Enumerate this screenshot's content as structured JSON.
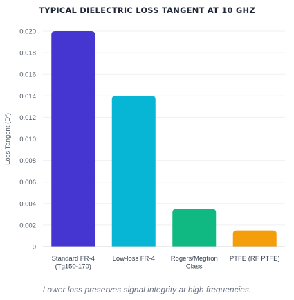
{
  "chart_data": {
    "type": "bar",
    "title": "TYPICAL DIELECTRIC LOSS TANGENT AT 10 GHZ",
    "ylabel": "Loss Tangent (Df)",
    "xlabel": "",
    "ylim": [
      0,
      0.02
    ],
    "yticks": [
      "0",
      "0.002",
      "0.004",
      "0.006",
      "0.008",
      "0.010",
      "0.012",
      "0.014",
      "0.016",
      "0.018",
      "0.020"
    ],
    "categories": [
      [
        "Standard FR-4",
        "(Tg150-170)"
      ],
      [
        "Low-loss FR-4"
      ],
      [
        "Rogers/Megtron",
        "Class"
      ],
      [
        "PTFE (RF PTFE)"
      ]
    ],
    "values": [
      0.02,
      0.014,
      0.0035,
      0.0015
    ],
    "colors": [
      "#4535d1",
      "#06b6d4",
      "#10b981",
      "#f59e0b"
    ],
    "grid": true,
    "legend": "none"
  },
  "footnote": "Lower loss preserves signal integrity at high frequencies."
}
